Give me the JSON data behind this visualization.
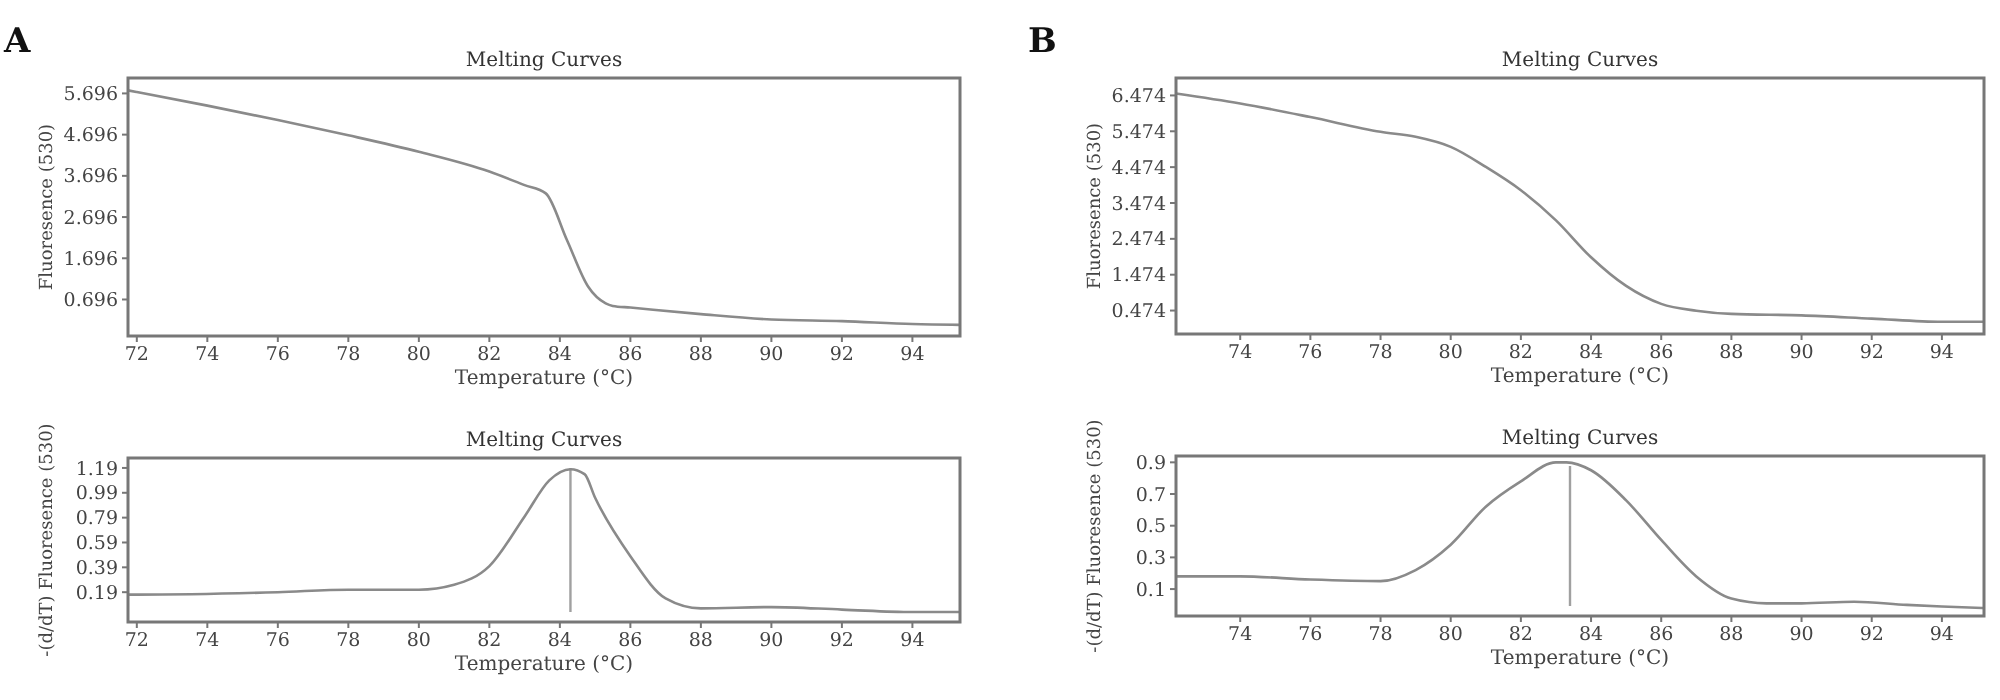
{
  "chart_data": [
    {
      "type": "line",
      "title": "Melting Curves",
      "xlabel": "Temperature (°C)",
      "ylabel": "Fluoresence (530)",
      "annotations": [
        "A"
      ],
      "xlim": [
        71.75,
        95.35
      ],
      "xticks": [
        72,
        74,
        76,
        78,
        80,
        82,
        84,
        86,
        88,
        90,
        92,
        94
      ],
      "ylim": [
        -0.19,
        6.07
      ],
      "yticks": [
        0.696,
        1.696,
        2.696,
        3.696,
        4.696,
        5.696
      ],
      "grid": false,
      "series": [
        {
          "color": "#8a8a8a",
          "x": [
            71.75,
            72,
            74,
            76,
            78,
            80,
            82,
            83,
            83.6,
            84.2,
            84.8,
            85.3,
            85.5,
            86,
            88,
            90,
            92,
            94,
            95.35
          ],
          "values": [
            5.77,
            5.73,
            5.4,
            5.05,
            4.68,
            4.28,
            3.8,
            3.47,
            3.27,
            2.14,
            1.01,
            0.6,
            0.54,
            0.5,
            0.34,
            0.21,
            0.17,
            0.1,
            0.08
          ]
        }
      ]
    },
    {
      "type": "line",
      "title": "Melting Curves",
      "xlabel": "Temperature (°C)",
      "ylabel": "-(d/dT) Fluoresence (530)",
      "xlim": [
        71.75,
        95.35
      ],
      "xticks": [
        72,
        74,
        76,
        78,
        80,
        82,
        84,
        86,
        88,
        90,
        92,
        94
      ],
      "ylim": [
        -0.05,
        1.27
      ],
      "yticks": [
        0.19,
        0.39,
        0.59,
        0.79,
        0.99,
        1.19
      ],
      "grid": false,
      "ref_lines": [
        {
          "axis": "x",
          "value": 84.3,
          "color": "#a0a0a0"
        }
      ],
      "series": [
        {
          "color": "#8a8a8a",
          "x": [
            71.75,
            72,
            76,
            78,
            80,
            81,
            82,
            83,
            83.7,
            84.3,
            84.7,
            85,
            86,
            87,
            88,
            90,
            92,
            94,
            95.35
          ],
          "values": [
            0.17,
            0.17,
            0.19,
            0.21,
            0.21,
            0.25,
            0.4,
            0.8,
            1.09,
            1.18,
            1.14,
            0.95,
            0.48,
            0.14,
            0.06,
            0.07,
            0.05,
            0.03,
            0.03
          ]
        }
      ]
    },
    {
      "type": "line",
      "title": "Melting Curves",
      "xlabel": "Temperature (°C)",
      "ylabel": "Fluoresence (530)",
      "annotations": [
        "B"
      ],
      "xlim": [
        72.17,
        95.2
      ],
      "xticks": [
        74,
        76,
        78,
        80,
        82,
        84,
        86,
        88,
        90,
        92,
        94
      ],
      "ylim": [
        -0.18,
        6.96
      ],
      "yticks": [
        0.474,
        1.474,
        2.474,
        3.474,
        4.474,
        5.474,
        6.474
      ],
      "grid": false,
      "series": [
        {
          "color": "#8a8a8a",
          "x": [
            72.17,
            74,
            76,
            78,
            79,
            80,
            81,
            82,
            83,
            84,
            85,
            86,
            87,
            88,
            90,
            92,
            94,
            95.2
          ],
          "values": [
            6.53,
            6.25,
            5.87,
            5.46,
            5.32,
            5.04,
            4.48,
            3.83,
            2.99,
            1.96,
            1.16,
            0.66,
            0.47,
            0.38,
            0.34,
            0.25,
            0.16,
            0.16
          ]
        }
      ]
    },
    {
      "type": "line",
      "title": "Melting Curves",
      "xlabel": "Temperature (°C)",
      "ylabel": "-(d/dT) Fluoresence (530)",
      "xlim": [
        72.17,
        95.2
      ],
      "xticks": [
        74,
        76,
        78,
        80,
        82,
        84,
        86,
        88,
        90,
        92,
        94
      ],
      "ylim": [
        -0.07,
        0.94
      ],
      "yticks": [
        0.1,
        0.3,
        0.5,
        0.7,
        0.9
      ],
      "grid": false,
      "ref_lines": [
        {
          "axis": "x",
          "value": 83.4,
          "color": "#a0a0a0"
        }
      ],
      "series": [
        {
          "color": "#8a8a8a",
          "x": [
            72.17,
            74,
            76,
            78,
            79,
            80,
            81,
            82,
            83,
            83.3,
            84,
            85,
            86,
            87,
            88,
            89,
            90,
            91.5,
            93,
            94,
            95.2
          ],
          "values": [
            0.18,
            0.18,
            0.16,
            0.15,
            0.22,
            0.38,
            0.62,
            0.78,
            0.9,
            0.9,
            0.85,
            0.66,
            0.41,
            0.18,
            0.04,
            0.01,
            0.01,
            0.02,
            0.0,
            -0.01,
            -0.02
          ]
        }
      ]
    }
  ]
}
